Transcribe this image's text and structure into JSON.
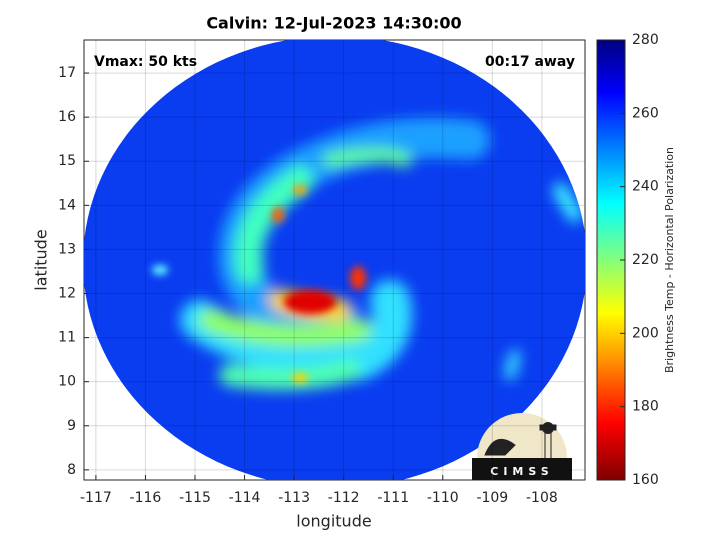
{
  "chart_data": {
    "type": "image",
    "title": "Calvin: 12-Jul-2023 14:30:00",
    "annotations": [
      "Vmax: 50 kts",
      "00:17 away"
    ],
    "logo_text": "CIMSS",
    "xlabel": "longitude",
    "ylabel": "latitude",
    "xlim": [
      -117.24,
      -107.13
    ],
    "xticks": [
      -117,
      -116,
      -115,
      -114,
      -113,
      -112,
      -111,
      -110,
      -109,
      -108
    ],
    "ylim": [
      7.77,
      17.75
    ],
    "yticks": [
      8,
      9,
      10,
      11,
      12,
      13,
      14,
      15,
      16,
      17
    ],
    "grid": true,
    "colorbar": {
      "label": "Brightness Temp - Horizontal Polarization",
      "lim": [
        160,
        280
      ],
      "ticks": [
        160,
        180,
        200,
        220,
        240,
        260,
        280
      ]
    }
  }
}
